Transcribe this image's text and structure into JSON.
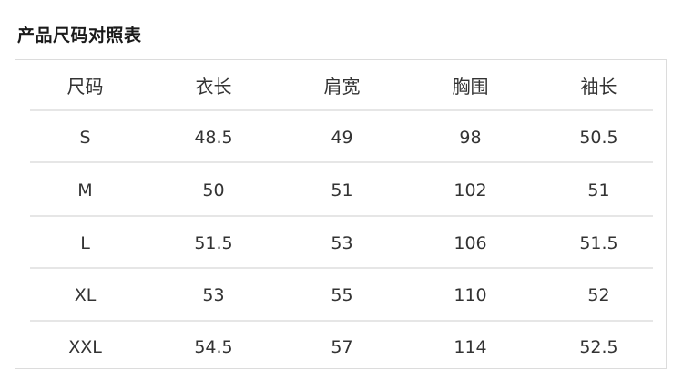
{
  "title": "产品尺码对照表",
  "table": {
    "headers": [
      "尺码",
      "衣长",
      "肩宽",
      "胸围",
      "袖长"
    ],
    "rows": [
      [
        "S",
        "48.5",
        "49",
        "98",
        "50.5"
      ],
      [
        "M",
        "50",
        "51",
        "102",
        "51"
      ],
      [
        "L",
        "51.5",
        "53",
        "106",
        "51.5"
      ],
      [
        "XL",
        "53",
        "55",
        "110",
        "52"
      ],
      [
        "XXL",
        "54.5",
        "57",
        "114",
        "52.5"
      ]
    ]
  }
}
